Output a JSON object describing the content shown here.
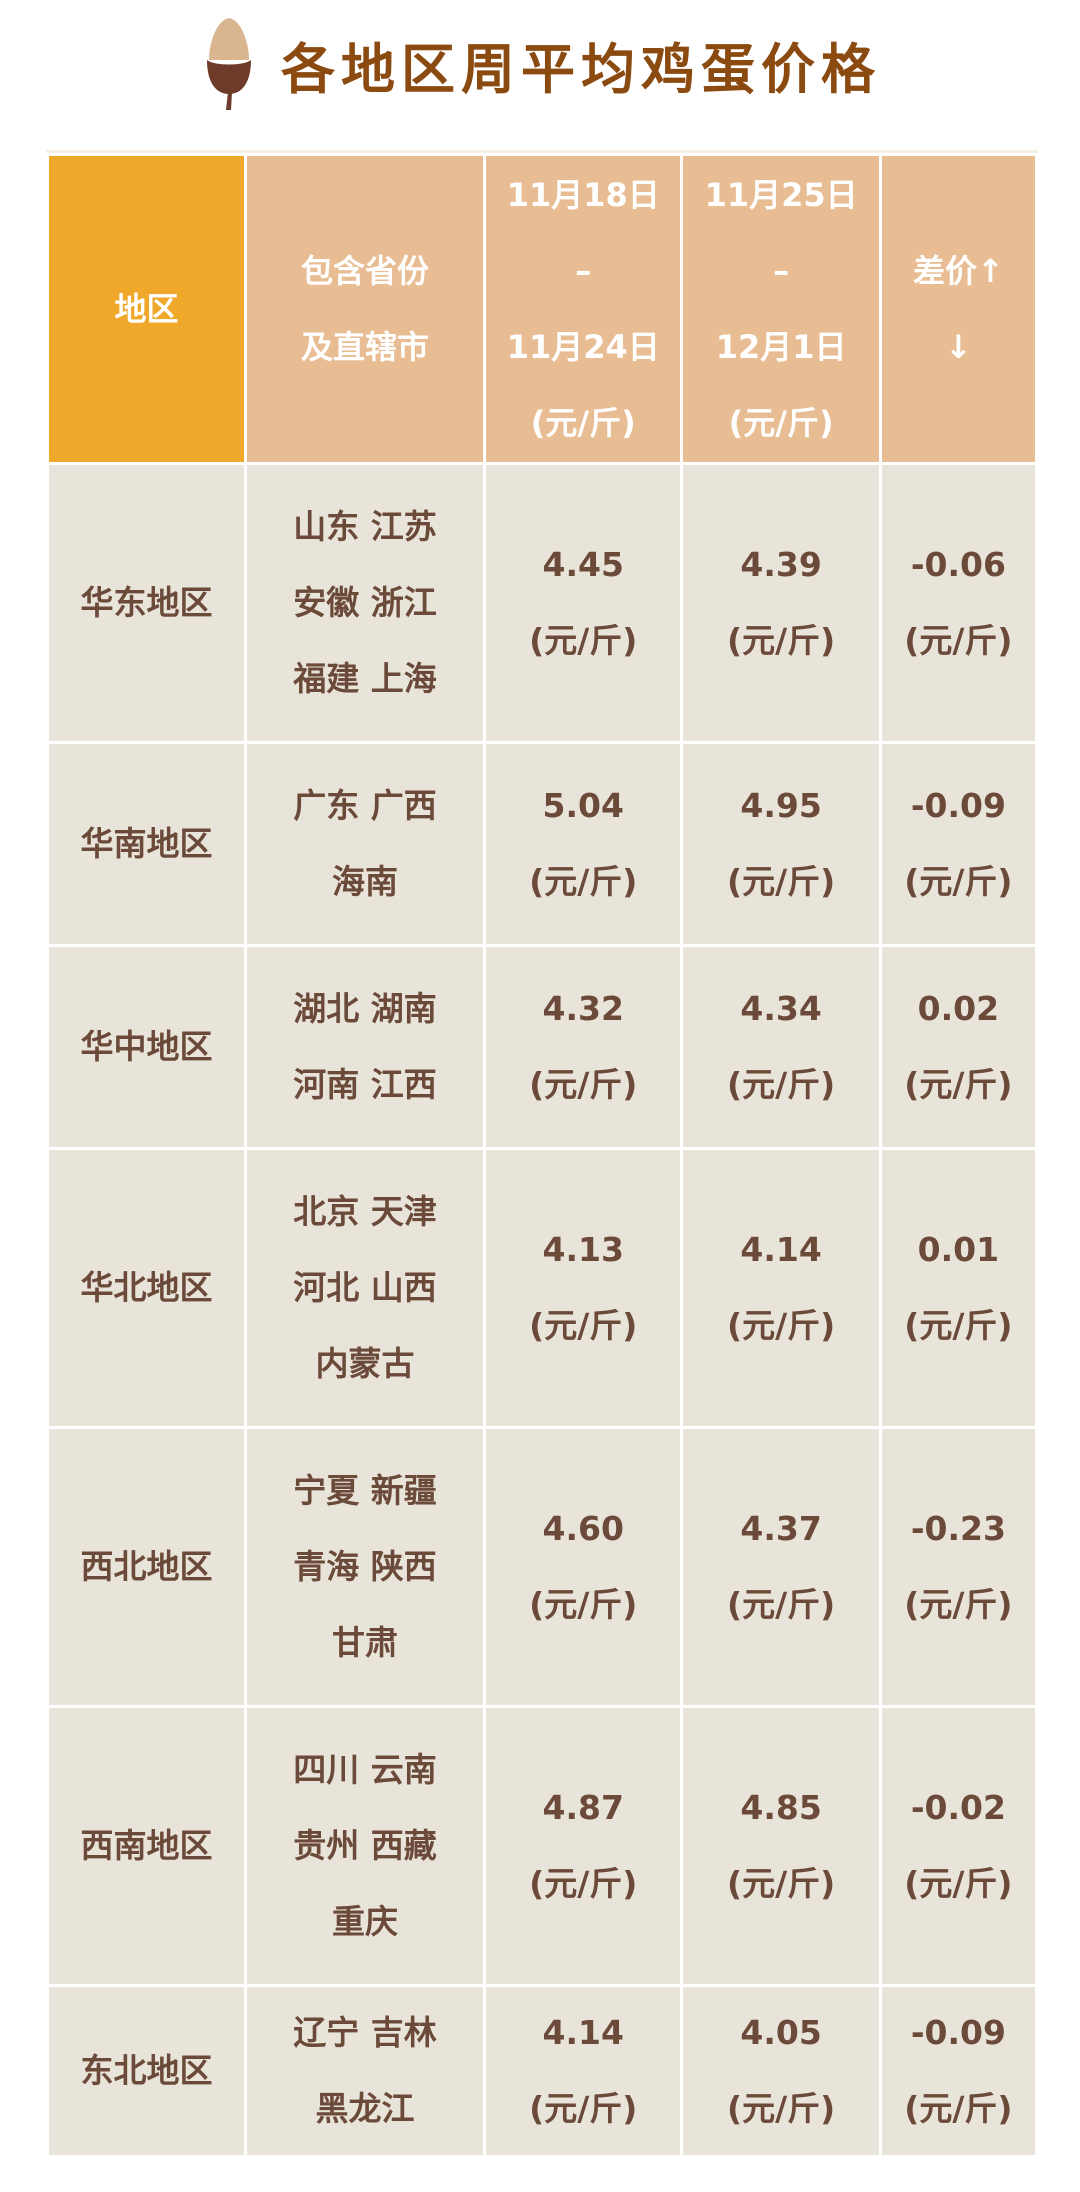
{
  "title": "各地区周平均鸡蛋价格",
  "colors": {
    "title": "#8B4A10",
    "header_first": "#F0A82B",
    "header": "#E9BD93",
    "body": "#E9E4DA",
    "text": "#6B4A3A"
  },
  "icon": "acorn-icon",
  "headers": [
    {
      "lines": [
        "地区"
      ]
    },
    {
      "lines": [
        "包含省份",
        "及直辖市"
      ]
    },
    {
      "lines": [
        "11月18日",
        "–",
        "11月24日",
        "(元/斤)"
      ]
    },
    {
      "lines": [
        "11月25日",
        "–",
        "12月1日",
        "(元/斤)"
      ]
    },
    {
      "lines": [
        "差价↑",
        "↓"
      ]
    }
  ],
  "unit": "(元/斤)",
  "rows": [
    {
      "region": "华东地区",
      "provinces": [
        "山东  江苏",
        "安徽  浙江",
        "福建  上海"
      ],
      "prev": "4.45",
      "curr": "4.39",
      "diff": "-0.06"
    },
    {
      "region": "华南地区",
      "provinces": [
        "广东  广西",
        "海南"
      ],
      "prev": "5.04",
      "curr": "4.95",
      "diff": "-0.09"
    },
    {
      "region": "华中地区",
      "provinces": [
        "湖北  湖南",
        "河南  江西"
      ],
      "prev": "4.32",
      "curr": "4.34",
      "diff": "0.02"
    },
    {
      "region": "华北地区",
      "provinces": [
        "北京  天津",
        "河北  山西",
        "内蒙古"
      ],
      "prev": "4.13",
      "curr": "4.14",
      "diff": "0.01"
    },
    {
      "region": "西北地区",
      "provinces": [
        "宁夏  新疆",
        "青海  陕西",
        "甘肃"
      ],
      "prev": "4.60",
      "curr": "4.37",
      "diff": "-0.23"
    },
    {
      "region": "西南地区",
      "provinces": [
        "四川  云南",
        "贵州  西藏",
        "重庆"
      ],
      "prev": "4.87",
      "curr": "4.85",
      "diff": "-0.02"
    },
    {
      "region": "东北地区",
      "provinces": [
        "辽宁  吉林",
        "黑龙江"
      ],
      "prev": "4.14",
      "curr": "4.05",
      "diff": "-0.09"
    }
  ]
}
